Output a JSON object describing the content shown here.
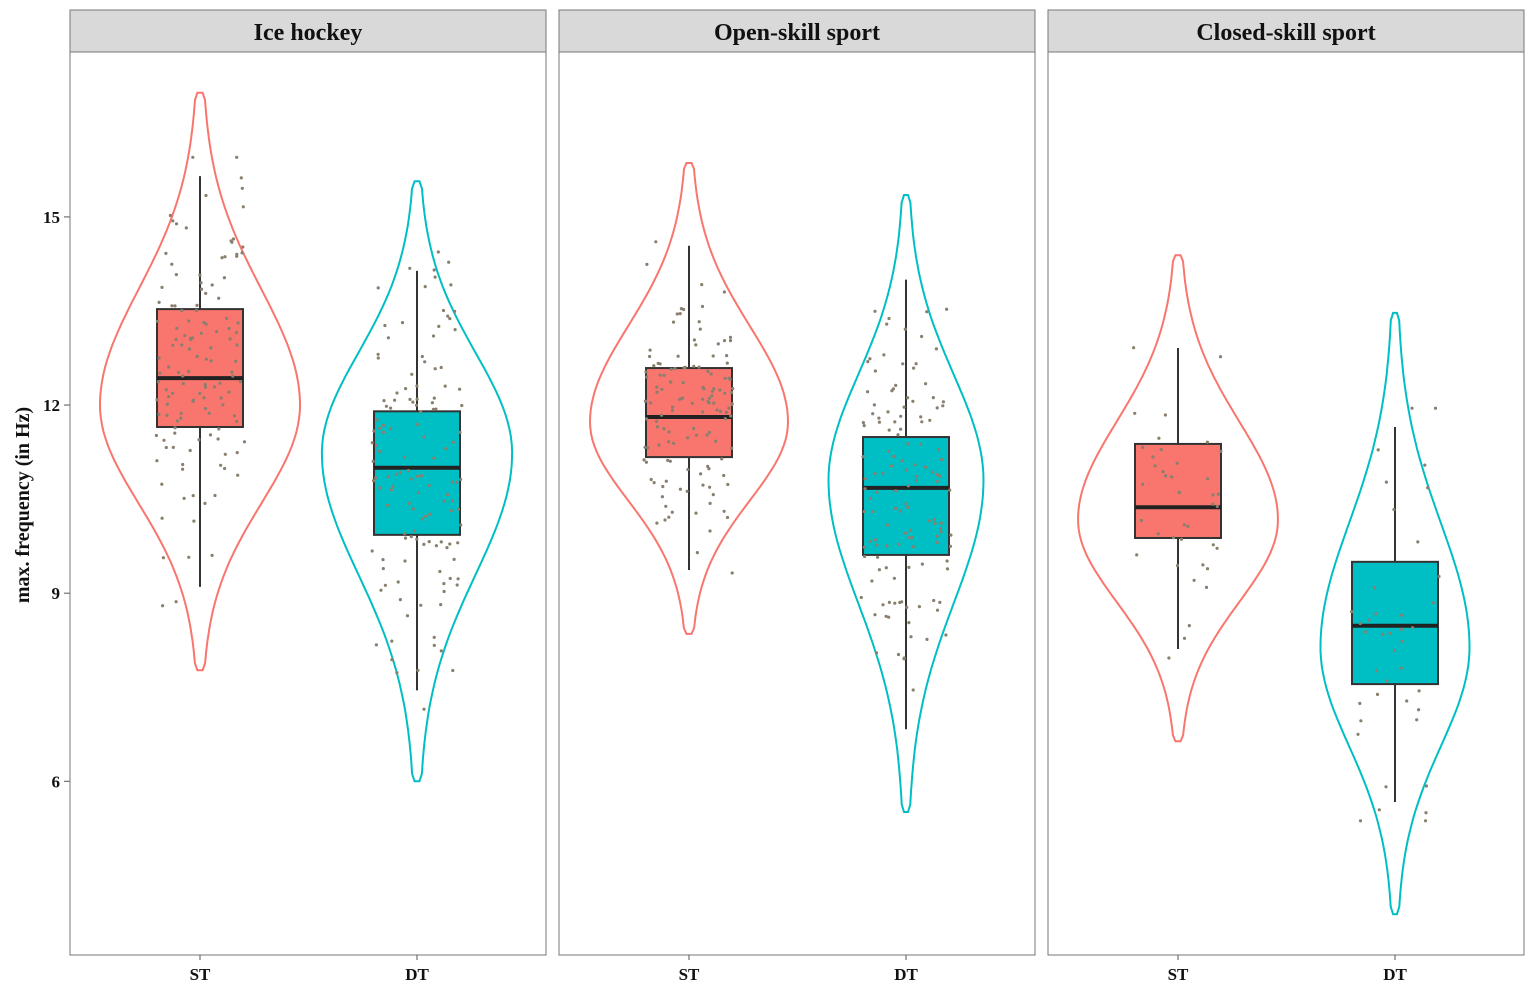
{
  "chart_data": {
    "type": "violin-box",
    "ylabel": "max. frequency (in Hz)",
    "xlabel": "",
    "ylim": [
      3.23,
      17.63
    ],
    "yticks": [
      6,
      9,
      12,
      15
    ],
    "ytick_labels": [
      "6",
      "9",
      "12",
      "15"
    ],
    "grid": false,
    "categories": [
      "ST",
      "DT"
    ],
    "colors": {
      "ST": "#F8766D",
      "DT": "#00BFC4",
      "points": "#8a7f6e",
      "strip": "#d9d9d9"
    },
    "panels": [
      {
        "title": "Ice hockey",
        "groups": [
          {
            "name": "ST",
            "whisker_low": 9.1,
            "q1": 11.65,
            "median": 12.43,
            "q3": 13.53,
            "whisker_high": 15.65,
            "violin_min": 7.77,
            "violin_max": 16.98,
            "violin_mode": 12.0,
            "density_peak": 1.0
          },
          {
            "name": "DT",
            "whisker_low": 7.45,
            "q1": 9.93,
            "median": 11.0,
            "q3": 11.9,
            "whisker_high": 14.14,
            "violin_min": 6.0,
            "violin_max": 15.57,
            "violin_mode": 11.23,
            "density_peak": 0.95
          }
        ]
      },
      {
        "title": "Open-skill sport",
        "groups": [
          {
            "name": "ST",
            "whisker_low": 9.37,
            "q1": 11.17,
            "median": 11.81,
            "q3": 12.59,
            "whisker_high": 14.54,
            "violin_min": 8.35,
            "violin_max": 15.86,
            "violin_mode": 11.73,
            "density_peak": 0.99
          },
          {
            "name": "DT",
            "whisker_low": 6.83,
            "q1": 9.61,
            "median": 10.68,
            "q3": 11.49,
            "whisker_high": 14.0,
            "violin_min": 5.51,
            "violin_max": 15.35,
            "violin_mode": 10.8,
            "density_peak": 0.77
          }
        ]
      },
      {
        "title": "Closed-skill sport",
        "groups": [
          {
            "name": "ST",
            "whisker_low": 8.11,
            "q1": 9.88,
            "median": 10.37,
            "q3": 11.38,
            "whisker_high": 12.91,
            "violin_min": 6.64,
            "violin_max": 14.39,
            "violin_mode": 10.17,
            "density_peak": 1.0
          },
          {
            "name": "DT",
            "whisker_low": 5.67,
            "q1": 7.55,
            "median": 8.48,
            "q3": 9.5,
            "whisker_high": 11.65,
            "violin_min": 3.88,
            "violin_max": 13.47,
            "violin_mode": 8.14,
            "density_peak": 0.74
          }
        ]
      }
    ]
  }
}
